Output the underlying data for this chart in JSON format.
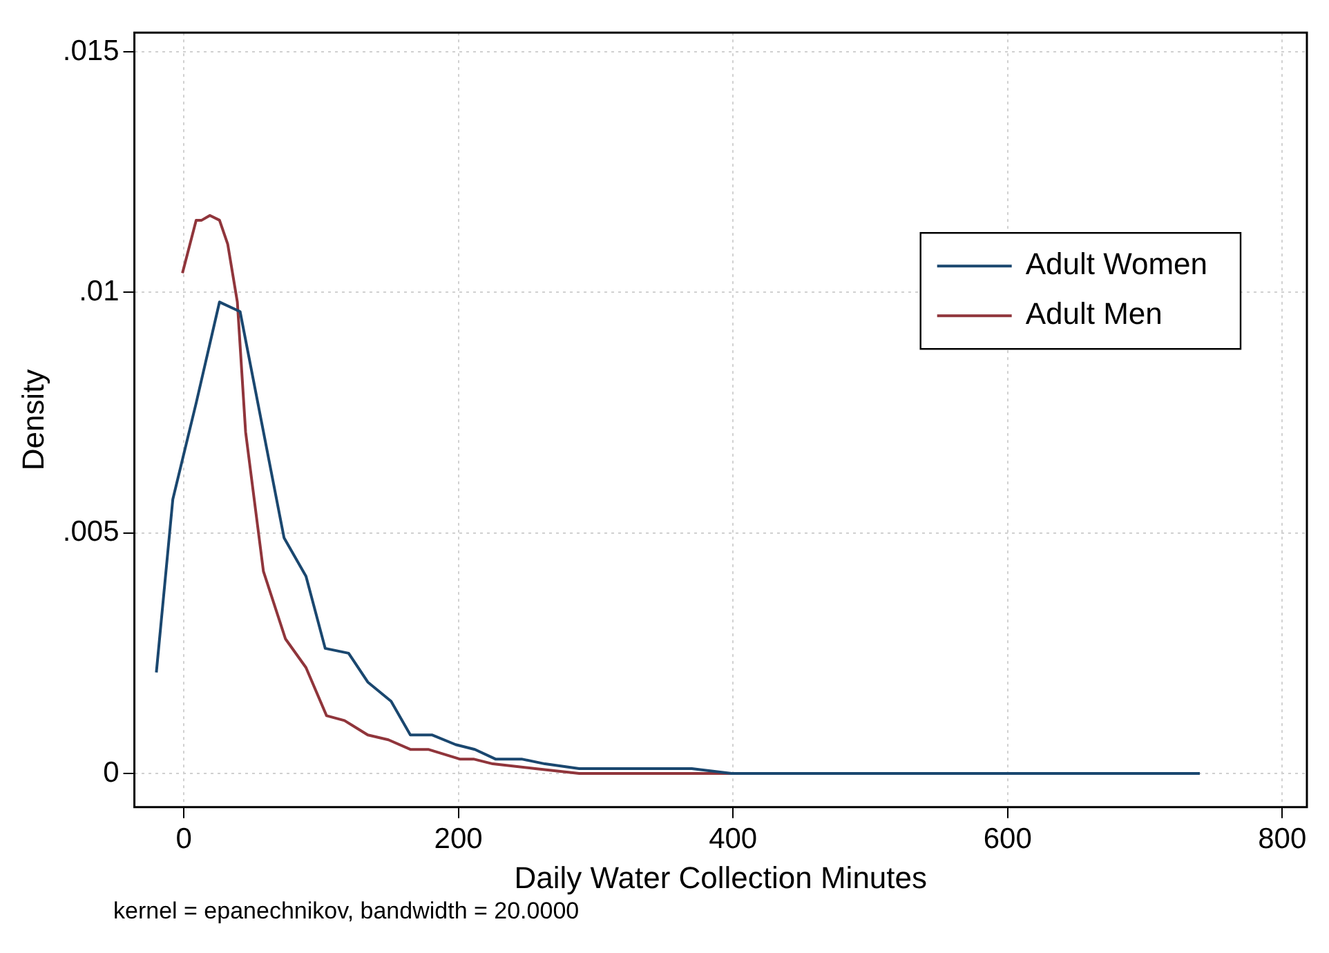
{
  "chart_data": {
    "type": "line",
    "xlabel": "Daily Water Collection Minutes",
    "ylabel": "Density",
    "annotations": [
      "kernel = epanechnikov, bandwidth = 20.0000"
    ],
    "xlim": [
      -36,
      818
    ],
    "ylim": [
      -0.0007,
      0.0154
    ],
    "xticks": [
      0,
      200,
      400,
      600,
      800
    ],
    "yticks": [
      {
        "value": 0,
        "label": "0"
      },
      {
        "value": 0.005,
        "label": ".005"
      },
      {
        "value": 0.01,
        "label": ".01"
      },
      {
        "value": 0.015,
        "label": ".015"
      }
    ],
    "grid": true,
    "legend": "right",
    "marker": "none",
    "line_style": "solid",
    "series": [
      {
        "name": "Adult Women",
        "color": "#1a476f",
        "x": [
          -20,
          -8,
          9,
          26,
          41,
          73,
          89,
          103,
          120,
          134,
          151,
          165,
          181,
          198,
          212,
          227,
          246,
          263,
          288,
          337,
          370,
          399,
          740
        ],
        "values": [
          0.0021,
          0.0057,
          0.0077,
          0.0098,
          0.0096,
          0.0049,
          0.0041,
          0.0026,
          0.0025,
          0.0019,
          0.0015,
          0.0008,
          0.0008,
          0.0006,
          0.0005,
          0.0003,
          0.0003,
          0.0002,
          0.0001,
          0.0001,
          0.0001,
          0,
          0
        ]
      },
      {
        "name": "Adult Men",
        "color": "#90353b",
        "x": [
          -1,
          9,
          13,
          19,
          26,
          32,
          39,
          45,
          58,
          74,
          89,
          104,
          117,
          134,
          149,
          165,
          178,
          201,
          211,
          225,
          256,
          288,
          399,
          538
        ],
        "values": [
          0.0104,
          0.0115,
          0.0115,
          0.0116,
          0.0115,
          0.011,
          0.0098,
          0.0071,
          0.0042,
          0.0028,
          0.0022,
          0.0012,
          0.0011,
          0.0008,
          0.0007,
          0.0005,
          0.0005,
          0.0003,
          0.0003,
          0.0002,
          0.0001,
          0,
          0,
          0
        ]
      }
    ]
  }
}
